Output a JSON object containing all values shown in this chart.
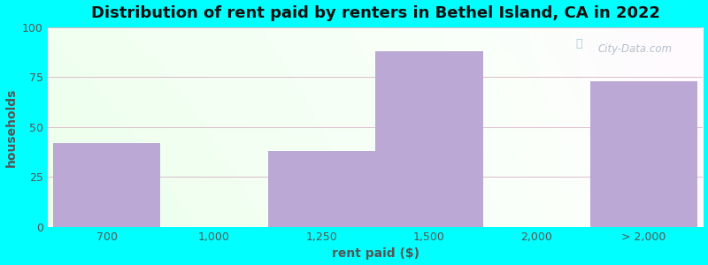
{
  "title": "Distribution of rent paid by renters in Bethel Island, CA in 2022",
  "xlabel": "rent paid ($)",
  "ylabel": "households",
  "categories": [
    "700",
    "1,000",
    "1,250",
    "1,500",
    "2,000",
    "> 2,000"
  ],
  "bar_lefts": [
    0,
    1,
    2,
    3,
    4,
    5
  ],
  "bar_widths": [
    1,
    1,
    1,
    1,
    1,
    1
  ],
  "values": [
    42,
    0,
    38,
    88,
    0,
    73
  ],
  "bar_color": "#BBA8D4",
  "ylim": [
    0,
    100
  ],
  "yticks": [
    0,
    25,
    50,
    75,
    100
  ],
  "xlim": [
    -0.05,
    6.05
  ],
  "outer_bg": "#00FFFF",
  "title_fontsize": 13,
  "axis_label_fontsize": 10,
  "tick_fontsize": 9,
  "watermark_text": "City-Data.com",
  "grid_color": "#ddbbcc",
  "tick_color": "#555555",
  "label_color": "#555555"
}
